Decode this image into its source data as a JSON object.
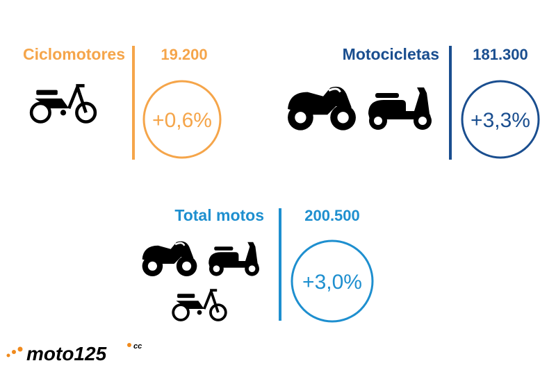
{
  "blocks": [
    {
      "label": "Ciclomotores",
      "value": "19.200",
      "change": "+0,6%"
    },
    {
      "label": "Motocicletas",
      "value": "181.300",
      "change": "+3,3%"
    },
    {
      "label": "Total motos",
      "value": "200.500",
      "change": "+3,0%"
    }
  ],
  "logo": {
    "name": "moto125",
    "suffix": "cc"
  }
}
